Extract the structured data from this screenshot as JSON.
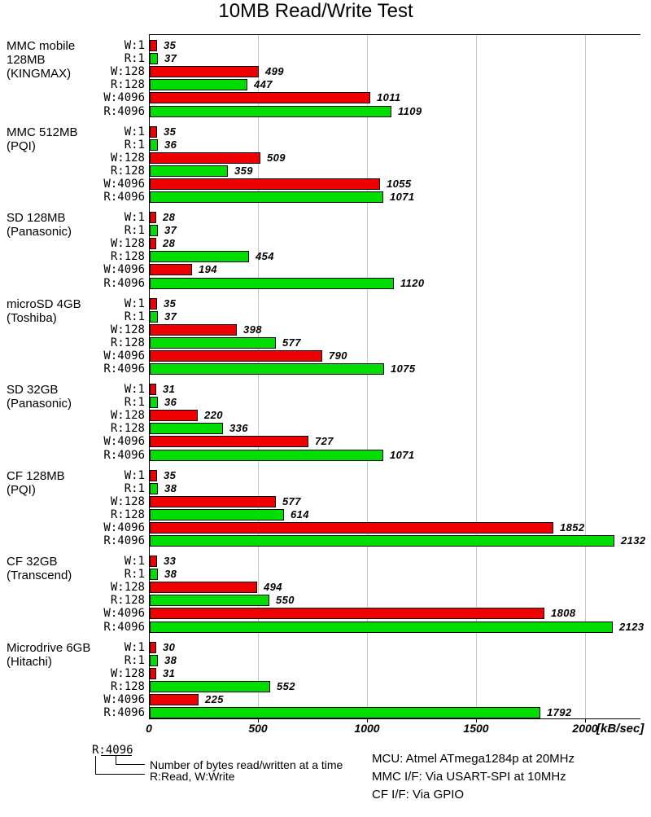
{
  "title": "10MB Read/Write Test",
  "chart_data": {
    "type": "bar",
    "orientation": "horizontal",
    "title": "10MB Read/Write Test",
    "unit_label": "[kB/sec]",
    "xlim": [
      0,
      2250
    ],
    "x_ticks": [
      0,
      500,
      1000,
      1500,
      2000
    ],
    "grid": true,
    "bar_labels": [
      "W:1",
      "R:1",
      "W:128",
      "R:128",
      "W:4096",
      "R:4096"
    ],
    "colors": {
      "write": "#ee0000",
      "read": "#00dd00",
      "grid": "#c8c8c8",
      "axis": "#000000"
    },
    "groups": [
      {
        "label_lines": [
          "MMC mobile",
          "128MB",
          "(KINGMAX)"
        ],
        "values": [
          35,
          37,
          499,
          447,
          1011,
          1109
        ]
      },
      {
        "label_lines": [
          "MMC 512MB",
          "(PQI)"
        ],
        "values": [
          35,
          36,
          509,
          359,
          1055,
          1071
        ]
      },
      {
        "label_lines": [
          "SD 128MB",
          "(Panasonic)"
        ],
        "values": [
          28,
          37,
          28,
          454,
          194,
          1120
        ]
      },
      {
        "label_lines": [
          "microSD 4GB",
          "(Toshiba)"
        ],
        "values": [
          35,
          37,
          398,
          577,
          790,
          1075
        ]
      },
      {
        "label_lines": [
          "SD 32GB",
          "(Panasonic)"
        ],
        "values": [
          31,
          36,
          220,
          336,
          727,
          1071
        ]
      },
      {
        "label_lines": [
          "CF 128MB",
          "(PQI)"
        ],
        "values": [
          35,
          38,
          577,
          614,
          1852,
          2132
        ]
      },
      {
        "label_lines": [
          "CF 32GB",
          "(Transcend)"
        ],
        "values": [
          33,
          38,
          494,
          550,
          1808,
          2123
        ]
      },
      {
        "label_lines": [
          "Microdrive 6GB",
          "(Hitachi)"
        ],
        "values": [
          30,
          38,
          31,
          552,
          225,
          1792
        ]
      }
    ]
  },
  "legend": {
    "sample": "R:4096",
    "note_bytes": "Number of bytes read/written at a time",
    "note_rw": "R:Read, W:Write"
  },
  "info": {
    "lines": [
      "MCU: Atmel ATmega1284p at 20MHz",
      "MMC I/F: Via USART-SPI at 10MHz",
      "CF I/F: Via GPIO"
    ]
  }
}
